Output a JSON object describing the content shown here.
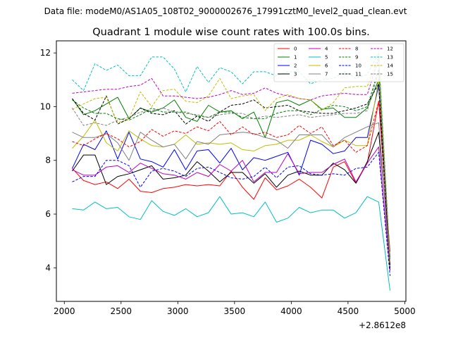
{
  "suptitle": "Data file: modeM0/AS1A05_108T02_9000002676_17991cztM0_level2_quad_clean.evt",
  "chart_data": {
    "type": "line",
    "title": "Quadrant 1 module wise count rates with 100.0s bins.",
    "xlabel": "",
    "ylabel": "",
    "x_offset_label": "+2.8612e8",
    "xlim": [
      1930,
      5010
    ],
    "ylim": [
      2.75,
      12.45
    ],
    "x_ticks": [
      2000,
      2500,
      3000,
      3500,
      4000,
      4500,
      5000
    ],
    "x_tick_labels": [
      "2000",
      "2500",
      "3000",
      "3500",
      "4000",
      "4500",
      "5000"
    ],
    "y_ticks": [
      4,
      6,
      8,
      10,
      12
    ],
    "y_tick_labels": [
      "4",
      "6",
      "8",
      "10",
      "12"
    ],
    "legend_position": "top-right",
    "x": [
      2070,
      2170,
      2270,
      2370,
      2470,
      2570,
      2670,
      2770,
      2870,
      2970,
      3070,
      3170,
      3270,
      3370,
      3470,
      3570,
      3670,
      3770,
      3870,
      3970,
      4070,
      4170,
      4270,
      4370,
      4470,
      4570,
      4670,
      4770,
      4870
    ],
    "series": [
      {
        "name": "0",
        "color": "#ff0000",
        "dash": "solid",
        "values": [
          7.7,
          7.25,
          7.1,
          7.2,
          6.95,
          7.3,
          6.85,
          6.8,
          6.95,
          7.0,
          7.1,
          7.05,
          7.1,
          7.05,
          7.6,
          7.0,
          6.55,
          7.35,
          6.9,
          7.05,
          7.3,
          7.0,
          6.6,
          7.75,
          7.95,
          7.15,
          7.9,
          10.2,
          4.6
        ]
      },
      {
        "name": "1",
        "color": "#008000",
        "dash": "solid",
        "values": [
          10.3,
          9.7,
          9.85,
          10.1,
          10.35,
          9.55,
          9.95,
          9.8,
          9.95,
          10.25,
          9.6,
          9.45,
          10.05,
          9.8,
          9.85,
          9.55,
          9.8,
          8.85,
          10.15,
          10.25,
          10.05,
          10.25,
          9.9,
          9.95,
          9.6,
          9.6,
          9.95,
          11.0,
          4.3
        ]
      },
      {
        "name": "2",
        "color": "#0000ff",
        "dash": "solid",
        "values": [
          7.7,
          8.6,
          8.4,
          9.1,
          8.05,
          9.05,
          8.05,
          7.95,
          7.75,
          8.4,
          7.65,
          8.35,
          8.4,
          7.9,
          8.45,
          7.65,
          8.1,
          8.0,
          8.15,
          8.3,
          7.45,
          8.75,
          8.6,
          8.25,
          8.35,
          8.85,
          8.85,
          10.8,
          3.9
        ]
      },
      {
        "name": "3",
        "color": "#000000",
        "dash": "solid",
        "values": [
          7.6,
          8.2,
          8.2,
          7.1,
          7.4,
          7.5,
          7.65,
          7.8,
          7.3,
          7.35,
          7.45,
          7.95,
          7.6,
          7.2,
          7.55,
          7.55,
          7.15,
          7.5,
          7.0,
          7.45,
          7.6,
          7.45,
          7.45,
          7.9,
          7.65,
          7.15,
          7.95,
          9.05,
          4.4
        ]
      },
      {
        "name": "4",
        "color": "#bf00bf",
        "dash": "solid",
        "values": [
          7.65,
          7.45,
          7.45,
          7.75,
          7.8,
          7.55,
          7.9,
          7.7,
          7.5,
          7.45,
          7.3,
          7.55,
          7.4,
          7.85,
          7.6,
          8.0,
          7.2,
          7.55,
          7.55,
          8.25,
          7.5,
          7.55,
          7.55,
          7.85,
          8.05,
          7.2,
          7.9,
          8.5,
          3.9
        ]
      },
      {
        "name": "5",
        "color": "#00bfbf",
        "dash": "solid",
        "values": [
          6.2,
          6.15,
          6.45,
          6.2,
          6.25,
          5.9,
          5.8,
          6.5,
          6.1,
          5.95,
          6.2,
          5.9,
          6.05,
          6.65,
          6.0,
          6.05,
          5.9,
          6.45,
          5.7,
          5.85,
          6.25,
          6.05,
          6.15,
          6.15,
          5.85,
          6.05,
          6.65,
          6.45,
          3.15
        ]
      },
      {
        "name": "6",
        "color": "#bfbf00",
        "dash": "solid",
        "values": [
          8.45,
          8.9,
          9.5,
          8.65,
          8.35,
          9.1,
          8.8,
          8.55,
          8.5,
          8.6,
          8.95,
          8.6,
          8.65,
          8.6,
          8.65,
          8.4,
          8.35,
          8.55,
          8.6,
          8.75,
          8.75,
          8.95,
          8.7,
          8.5,
          8.75,
          8.55,
          8.55,
          11.0,
          4.2
        ]
      },
      {
        "name": "7",
        "color": "#808080",
        "dash": "solid",
        "values": [
          9.05,
          8.85,
          8.85,
          9.0,
          8.65,
          8.0,
          9.05,
          8.75,
          8.5,
          8.6,
          8.05,
          8.7,
          8.6,
          8.95,
          9.0,
          9.05,
          9.0,
          8.85,
          8.75,
          8.45,
          8.95,
          8.95,
          8.95,
          8.5,
          8.85,
          9.05,
          9.25,
          9.4,
          4.0
        ]
      },
      {
        "name": "8",
        "color": "#ff0000",
        "dash": "dashed",
        "values": [
          8.7,
          8.55,
          8.8,
          9.0,
          8.8,
          8.5,
          8.7,
          9.15,
          8.9,
          9.1,
          9.0,
          9.25,
          9.1,
          9.45,
          8.95,
          9.25,
          8.95,
          9.05,
          8.85,
          8.95,
          9.3,
          9.0,
          9.25,
          8.55,
          8.75,
          8.3,
          8.55,
          10.2,
          4.1
        ]
      },
      {
        "name": "9",
        "color": "#008000",
        "dash": "dashed",
        "values": [
          10.25,
          9.95,
          9.75,
          9.75,
          9.55,
          9.5,
          9.7,
          9.95,
          9.8,
          9.8,
          9.8,
          9.65,
          9.6,
          9.8,
          9.8,
          9.6,
          9.55,
          9.55,
          9.75,
          9.85,
          9.85,
          9.7,
          9.9,
          10.05,
          10.0,
          9.85,
          10.0,
          11.4,
          4.1
        ]
      },
      {
        "name": "10",
        "color": "#0000ff",
        "dash": "dashed",
        "values": [
          7.2,
          7.4,
          7.4,
          8.0,
          8.0,
          7.8,
          7.0,
          7.6,
          7.7,
          7.6,
          7.4,
          7.7,
          7.75,
          7.55,
          7.35,
          7.3,
          7.4,
          7.75,
          7.35,
          7.75,
          7.8,
          7.5,
          7.45,
          7.5,
          7.45,
          7.7,
          7.75,
          8.3,
          3.7
        ]
      },
      {
        "name": "11",
        "color": "#000000",
        "dash": "dashed",
        "values": [
          10.3,
          9.75,
          9.5,
          10.4,
          9.35,
          9.55,
          9.95,
          9.75,
          9.7,
          9.85,
          9.35,
          9.65,
          9.45,
          9.8,
          10.05,
          10.1,
          10.25,
          9.95,
          10.0,
          10.05,
          9.85,
          9.8,
          9.75,
          9.75,
          9.85,
          9.95,
          10.1,
          10.85,
          4.0
        ]
      },
      {
        "name": "12",
        "color": "#bf00bf",
        "dash": "dashed",
        "values": [
          10.5,
          10.55,
          10.6,
          10.65,
          10.65,
          10.75,
          10.8,
          11.05,
          10.4,
          10.4,
          10.35,
          10.3,
          10.35,
          10.45,
          10.6,
          10.45,
          10.5,
          10.7,
          10.5,
          10.4,
          10.3,
          10.25,
          10.4,
          10.45,
          10.5,
          10.45,
          10.45,
          11.8,
          4.2
        ]
      },
      {
        "name": "13",
        "color": "#00bfbf",
        "dash": "dashed",
        "values": [
          11.0,
          10.6,
          11.6,
          11.35,
          11.55,
          11.15,
          11.15,
          11.85,
          11.85,
          11.4,
          10.55,
          11.5,
          10.9,
          11.45,
          11.3,
          10.85,
          11.3,
          11.3,
          11.15,
          11.3,
          11.3,
          10.85,
          11.0,
          11.05,
          11.3,
          11.05,
          11.2,
          12.0,
          4.3
        ]
      },
      {
        "name": "14",
        "color": "#bfbf00",
        "dash": "dashed",
        "values": [
          9.9,
          10.1,
          10.3,
          10.35,
          9.4,
          9.55,
          10.55,
          10.0,
          10.6,
          10.65,
          10.2,
          10.15,
          10.4,
          11.05,
          10.3,
          10.4,
          10.45,
          9.85,
          10.3,
          10.45,
          10.3,
          10.25,
          9.85,
          10.15,
          10.7,
          10.75,
          10.75,
          11.9,
          4.2
        ]
      },
      {
        "name": "15",
        "color": "#808080",
        "dash": "dashed",
        "values": [
          9.95,
          9.3,
          9.4,
          9.3,
          9.5,
          9.6,
          9.8,
          9.85,
          9.95,
          9.8,
          9.75,
          9.7,
          9.6,
          9.7,
          9.75,
          9.75,
          9.55,
          9.65,
          9.6,
          9.65,
          9.7,
          9.6,
          9.65,
          9.7,
          9.75,
          9.75,
          9.85,
          11.3,
          4.4
        ]
      }
    ]
  }
}
